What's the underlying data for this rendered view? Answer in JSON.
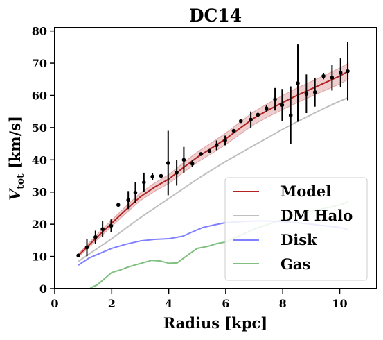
{
  "chart_data": {
    "type": "line",
    "title": "DC14",
    "xlabel": "Radius [kpc]",
    "ylabel_main": "V",
    "ylabel_sub": "tot",
    "ylabel_unit": " [km/s]",
    "xlim": [
      0,
      11.3
    ],
    "ylim": [
      0,
      81
    ],
    "xticks": [
      0,
      2,
      4,
      6,
      8,
      10
    ],
    "yticks": [
      0,
      10,
      20,
      30,
      40,
      50,
      60,
      70,
      80
    ],
    "grid": false,
    "legend_position": "lower-right",
    "series": [
      {
        "name": "Model",
        "color": "#b22222",
        "x": [
          0.83,
          1.2,
          1.6,
          2.0,
          2.5,
          3.0,
          3.5,
          4.0,
          4.5,
          5.0,
          5.5,
          6.0,
          6.5,
          7.0,
          7.5,
          8.0,
          8.5,
          9.0,
          9.5,
          10.0,
          10.3
        ],
        "y": [
          10.3,
          13.5,
          17.0,
          20.3,
          24.5,
          28.5,
          31.5,
          34.0,
          37.5,
          40.8,
          43.6,
          46.5,
          49.8,
          53.0,
          55.5,
          57.8,
          60.0,
          62.0,
          64.0,
          66.0,
          67.5
        ],
        "band_halfwidth": [
          0.5,
          0.7,
          0.9,
          1.0,
          1.1,
          1.2,
          1.3,
          1.4,
          1.5,
          1.6,
          1.7,
          1.8,
          1.9,
          2.0,
          2.1,
          2.2,
          2.3,
          2.3,
          2.4,
          2.5,
          2.5
        ]
      },
      {
        "name": "DM Halo",
        "color": "#bfbfbf",
        "x": [
          0.83,
          1.5,
          2.0,
          2.5,
          3.0,
          3.5,
          4.0,
          4.5,
          5.0,
          5.5,
          6.0,
          6.5,
          7.0,
          7.5,
          8.0,
          8.5,
          9.0,
          9.5,
          10.0,
          10.3
        ],
        "y": [
          8.5,
          12.5,
          15.5,
          18.8,
          22.0,
          25.0,
          28.0,
          31.0,
          34.0,
          36.8,
          39.5,
          42.0,
          44.5,
          47.0,
          49.5,
          51.8,
          54.0,
          56.2,
          58.2,
          59.3
        ]
      },
      {
        "name": "Disk",
        "color": "#7f7fff",
        "x": [
          0.83,
          1.2,
          1.6,
          2.0,
          2.5,
          3.0,
          3.5,
          4.0,
          4.5,
          4.8,
          5.2,
          5.6,
          6.0,
          6.5,
          7.0,
          7.5,
          8.0,
          8.5,
          9.0,
          9.5,
          10.0,
          10.3
        ],
        "y": [
          7.3,
          9.5,
          11.0,
          12.5,
          13.8,
          14.8,
          15.3,
          15.5,
          16.3,
          17.5,
          19.0,
          19.8,
          20.5,
          20.8,
          21.0,
          21.0,
          20.8,
          20.5,
          20.0,
          19.5,
          19.0,
          18.3
        ]
      },
      {
        "name": "Gas",
        "color": "#7fbf7f",
        "x": [
          1.25,
          1.5,
          1.8,
          2.0,
          2.3,
          2.6,
          3.0,
          3.4,
          3.7,
          4.0,
          4.3,
          4.6,
          5.0,
          5.4,
          5.7,
          6.0,
          6.5,
          7.0,
          7.5,
          8.0,
          8.5,
          9.0,
          9.5,
          10.0,
          10.3
        ],
        "y": [
          0.2,
          1.2,
          3.5,
          5.0,
          5.8,
          6.8,
          7.8,
          8.8,
          8.6,
          7.9,
          8.0,
          10.0,
          12.5,
          13.2,
          14.0,
          14.5,
          16.5,
          18.5,
          20.0,
          21.5,
          22.8,
          24.0,
          25.0,
          26.0,
          27.0
        ]
      }
    ],
    "observed": {
      "x": [
        0.83,
        1.13,
        1.43,
        1.68,
        1.98,
        2.23,
        2.58,
        2.83,
        3.13,
        3.43,
        3.73,
        3.98,
        4.28,
        4.53,
        4.83,
        5.13,
        5.43,
        5.68,
        5.98,
        6.28,
        6.53,
        6.88,
        7.13,
        7.43,
        7.73,
        7.98,
        8.28,
        8.53,
        8.83,
        9.13,
        9.43,
        9.73,
        10.03,
        10.28
      ],
      "y": [
        10.3,
        12.8,
        16.0,
        18.5,
        19.5,
        26.0,
        27.5,
        29.8,
        33.0,
        34.8,
        35.0,
        39.0,
        36.0,
        40.0,
        38.8,
        41.8,
        42.7,
        44.5,
        46.0,
        49.0,
        52.0,
        52.5,
        54.0,
        56.0,
        58.8,
        57.0,
        53.8,
        63.8,
        60.5,
        61.0,
        66.0,
        65.5,
        67.0,
        67.5
      ],
      "err": [
        0.3,
        2.7,
        2.0,
        2.5,
        2.0,
        0.3,
        2.8,
        3.2,
        3.0,
        1.0,
        0.3,
        10.0,
        4.0,
        4.0,
        1.0,
        0.3,
        0.3,
        1.5,
        1.5,
        0.3,
        0.3,
        2.5,
        0.3,
        1.0,
        3.5,
        5.0,
        9.0,
        12.0,
        6.0,
        4.5,
        1.0,
        4.0,
        4.5,
        9.0
      ]
    }
  }
}
